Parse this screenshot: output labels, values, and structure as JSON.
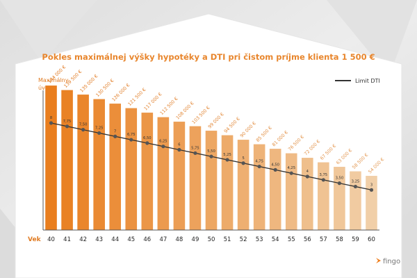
{
  "chart_data": {
    "type": "bar",
    "title": "Pokles maximálnej výšky hypotéky a DTI pri čistom príjme klienta 1 500 €",
    "ylabel": [
      "Maximálny",
      "úver"
    ],
    "xlabel": "Vek",
    "categories": [
      "40",
      "41",
      "42",
      "43",
      "44",
      "45",
      "46",
      "47",
      "48",
      "49",
      "50",
      "51",
      "52",
      "53",
      "54",
      "55",
      "56",
      "57",
      "58",
      "59",
      "60"
    ],
    "values": [
      144000,
      139500,
      135000,
      130500,
      126000,
      121500,
      117000,
      112500,
      108000,
      103500,
      99000,
      94500,
      90000,
      85500,
      81000,
      76500,
      72000,
      67500,
      63000,
      58500,
      54000
    ],
    "value_labels": [
      "144 000 €",
      "139 500 €",
      "135 000 €",
      "130 500 €",
      "126 000 €",
      "121 500 €",
      "117 000 €",
      "112 500 €",
      "108 000 €",
      "103 500 €",
      "99 000 €",
      "94 500 €",
      "90 000 €",
      "85 500 €",
      "81 000 €",
      "76 500 €",
      "72 000 €",
      "67 500 €",
      "63 000 €",
      "58 500 €",
      "54 000 €"
    ],
    "ylim": [
      0,
      160000
    ],
    "line_series": {
      "name": "Limit DTI",
      "values": [
        8,
        7.75,
        7.5,
        7.25,
        7,
        6.75,
        6.5,
        6.25,
        6,
        5.75,
        5.5,
        5.25,
        5,
        4.75,
        4.5,
        4.25,
        4,
        3.75,
        3.5,
        3.25,
        3
      ],
      "labels": [
        "8",
        "7,75",
        "7,50",
        "7,25",
        "7",
        "6,75",
        "6,50",
        "6,25",
        "6",
        "5,75",
        "5,50",
        "5,25",
        "5",
        "4,75",
        "4,50",
        "4,25",
        "4",
        "3,75",
        "3,50",
        "3,25",
        "3"
      ],
      "ylim": [
        0,
        12
      ]
    },
    "legend_position": "top-right",
    "grid": false,
    "colors": {
      "bar_start": "#e97e1e",
      "bar_end": "#f1cfa8",
      "line": "#333333",
      "title": "#e8862d"
    }
  },
  "brand": {
    "name": "fingo",
    "color": "#f07d1a"
  }
}
